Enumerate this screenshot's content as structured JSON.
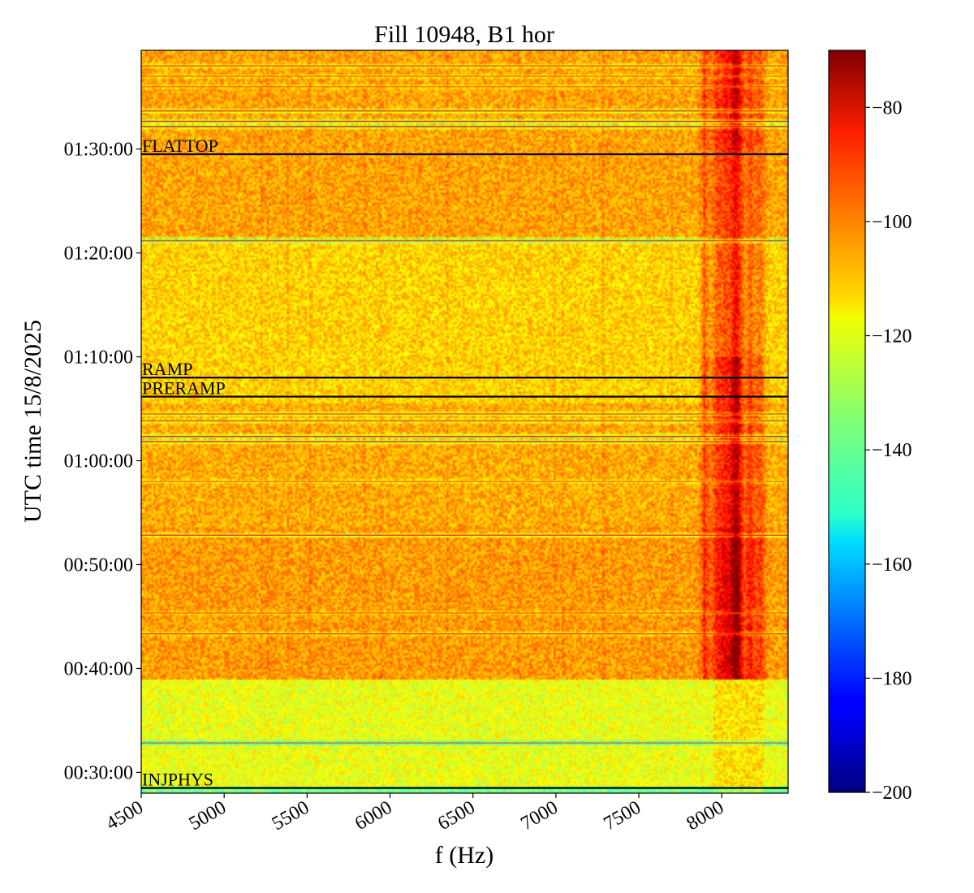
{
  "chart_data": {
    "type": "heatmap",
    "title": "Fill 10948, B1 hor",
    "xlabel": "f (Hz)",
    "ylabel": "UTC time 15/8/2025",
    "xlim": [
      4500,
      8400
    ],
    "ylim": [
      "00:28:00",
      "01:39:30"
    ],
    "x_ticks": [
      {
        "value": 4500,
        "label": "4500"
      },
      {
        "value": 5000,
        "label": "5000"
      },
      {
        "value": 5500,
        "label": "5500"
      },
      {
        "value": 6000,
        "label": "6000"
      },
      {
        "value": 6500,
        "label": "6500"
      },
      {
        "value": 7000,
        "label": "7000"
      },
      {
        "value": 7500,
        "label": "7500"
      },
      {
        "value": 8000,
        "label": "8000"
      }
    ],
    "y_ticks": [
      {
        "value": "00:30:00",
        "label": "00:30:00"
      },
      {
        "value": "00:40:00",
        "label": "00:40:00"
      },
      {
        "value": "00:50:00",
        "label": "00:50:00"
      },
      {
        "value": "01:00:00",
        "label": "01:00:00"
      },
      {
        "value": "01:10:00",
        "label": "01:10:00"
      },
      {
        "value": "01:20:00",
        "label": "01:20:00"
      },
      {
        "value": "01:30:00",
        "label": "01:30:00"
      }
    ],
    "colorbar": {
      "range": [
        -200,
        -70
      ],
      "colormap": "jet",
      "ticks": [
        {
          "value": -80,
          "label": "−80"
        },
        {
          "value": -100,
          "label": "−100"
        },
        {
          "value": -120,
          "label": "−120"
        },
        {
          "value": -140,
          "label": "−140"
        },
        {
          "value": -160,
          "label": "−160"
        },
        {
          "value": -180,
          "label": "−180"
        },
        {
          "value": -200,
          "label": "−200"
        }
      ]
    },
    "phases": [
      {
        "time": "00:28:30",
        "label": "INJPHYS"
      },
      {
        "time": "01:06:10",
        "label": "PRERAMP"
      },
      {
        "time": "01:08:00",
        "label": "RAMP"
      },
      {
        "time": "01:29:30",
        "label": "FLATTOP"
      }
    ],
    "horizontal_bands": [
      {
        "time": "01:38:00",
        "level": -92
      },
      {
        "time": "01:37:00",
        "level": -97
      },
      {
        "time": "01:36:00",
        "level": -98
      },
      {
        "time": "01:33:40",
        "level": -86
      },
      {
        "time": "01:32:40",
        "level": -83
      },
      {
        "time": "01:32:10",
        "level": -82
      },
      {
        "time": "01:21:10",
        "level": -88
      },
      {
        "time": "01:04:30",
        "level": -92
      },
      {
        "time": "01:03:50",
        "level": -90
      },
      {
        "time": "01:02:20",
        "level": -84
      },
      {
        "time": "01:01:50",
        "level": -86
      },
      {
        "time": "00:58:00",
        "level": -98
      },
      {
        "time": "00:52:50",
        "level": -86
      },
      {
        "time": "00:45:20",
        "level": -97
      },
      {
        "time": "00:43:20",
        "level": -92
      },
      {
        "time": "00:32:50",
        "level": -96
      }
    ],
    "vertical_bands": [
      {
        "f": 7900,
        "level": -94
      },
      {
        "f": 7970,
        "level": -90
      },
      {
        "f": 8020,
        "level": -86
      },
      {
        "f": 8070,
        "level": -84
      },
      {
        "f": 8100,
        "level": -82
      },
      {
        "f": 8170,
        "level": -90
      },
      {
        "f": 8230,
        "level": -94
      }
    ],
    "background_levels": [
      {
        "from": "00:28:00",
        "to": "00:28:40",
        "level": -137
      },
      {
        "from": "00:28:40",
        "to": "00:39:00",
        "level": -121
      },
      {
        "from": "00:39:00",
        "to": "00:53:30",
        "level": -106
      },
      {
        "from": "00:53:30",
        "to": "01:05:30",
        "level": -108
      },
      {
        "from": "01:05:30",
        "to": "01:21:30",
        "level": -113
      },
      {
        "from": "01:21:30",
        "to": "01:39:30",
        "level": -107
      }
    ]
  }
}
